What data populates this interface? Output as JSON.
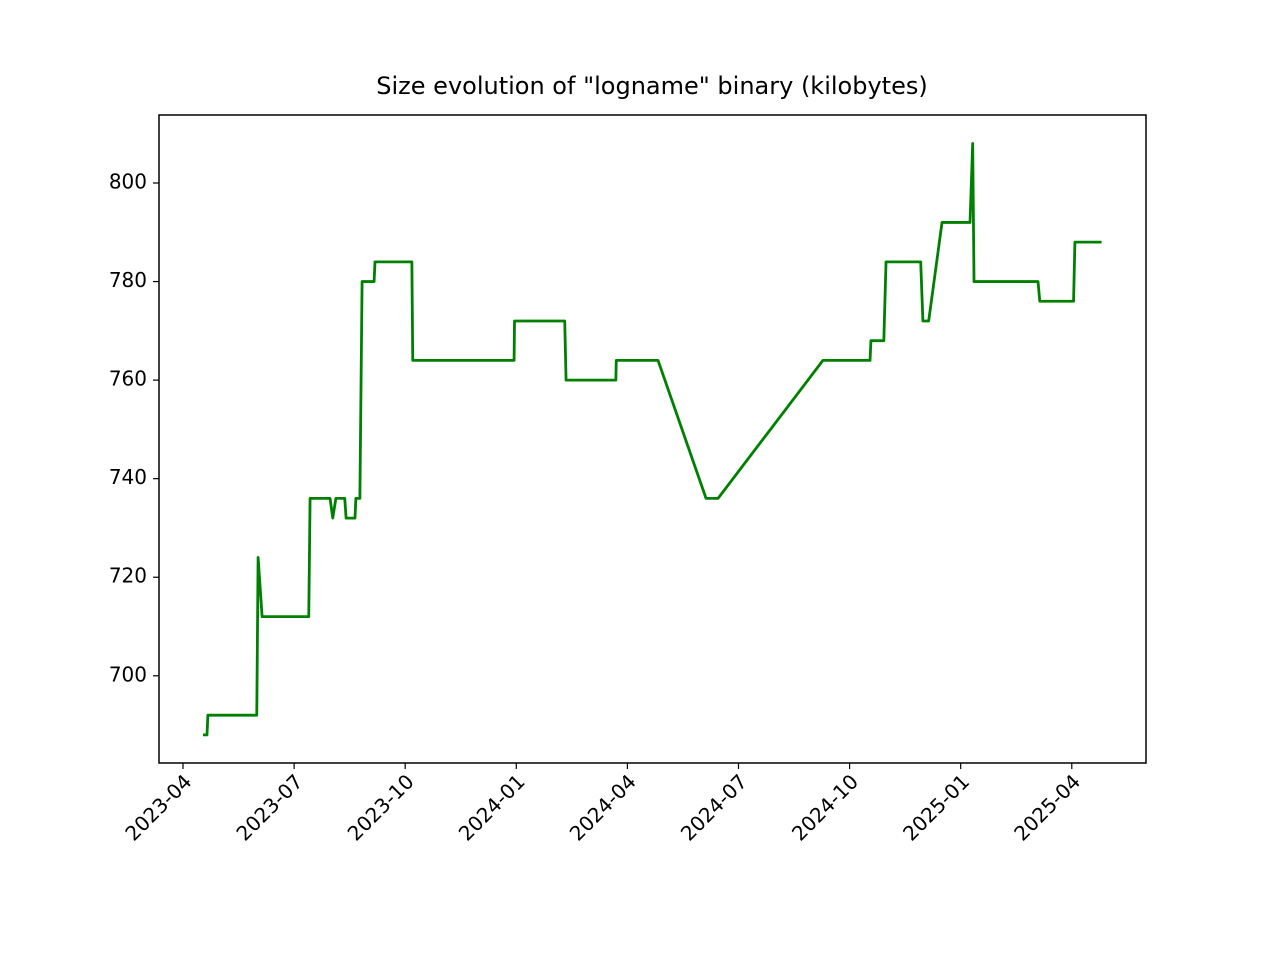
{
  "chart_data": {
    "type": "line",
    "title": "Size evolution of \"logname\" binary (kilobytes)",
    "color": "#008000",
    "x": [
      2023.295,
      2023.304,
      2023.306,
      2023.416,
      2023.419,
      2023.428,
      2023.533,
      2023.536,
      2023.581,
      2023.587,
      2023.594,
      2023.614,
      2023.617,
      2023.637,
      2023.639,
      2023.648,
      2023.653,
      2023.68,
      2023.682,
      2023.765,
      2023.767,
      2023.995,
      2023.996,
      2024.109,
      2024.112,
      2024.224,
      2024.225,
      2024.319,
      2024.427,
      2024.454,
      2024.69,
      2024.796,
      2024.798,
      2024.827,
      2024.832,
      2024.91,
      2024.915,
      2024.928,
      2024.958,
      2025.021,
      2025.027,
      2025.03,
      2025.174,
      2025.178,
      2025.254,
      2025.257,
      2025.317
    ],
    "values": [
      688,
      688,
      692,
      692,
      724,
      712,
      712,
      736,
      736,
      732,
      736,
      736,
      732,
      732,
      736,
      736,
      780,
      780,
      784,
      784,
      764,
      764,
      772,
      772,
      760,
      760,
      764,
      764,
      736,
      736,
      764,
      764,
      768,
      768,
      784,
      784,
      772,
      772,
      792,
      792,
      808,
      780,
      780,
      776,
      776,
      788,
      788
    ],
    "xlim": [
      2023.196,
      2025.417
    ],
    "ylim": [
      682.3,
      813.8
    ],
    "xticks": [
      {
        "value": 2023.25,
        "label": "2023-04"
      },
      {
        "value": 2023.5,
        "label": "2023-07"
      },
      {
        "value": 2023.75,
        "label": "2023-10"
      },
      {
        "value": 2024.0,
        "label": "2024-01"
      },
      {
        "value": 2024.25,
        "label": "2024-04"
      },
      {
        "value": 2024.5,
        "label": "2024-07"
      },
      {
        "value": 2024.75,
        "label": "2024-10"
      },
      {
        "value": 2025.0,
        "label": "2025-01"
      },
      {
        "value": 2025.25,
        "label": "2025-04"
      }
    ],
    "yticks": [
      700,
      720,
      740,
      760,
      780,
      800
    ]
  }
}
